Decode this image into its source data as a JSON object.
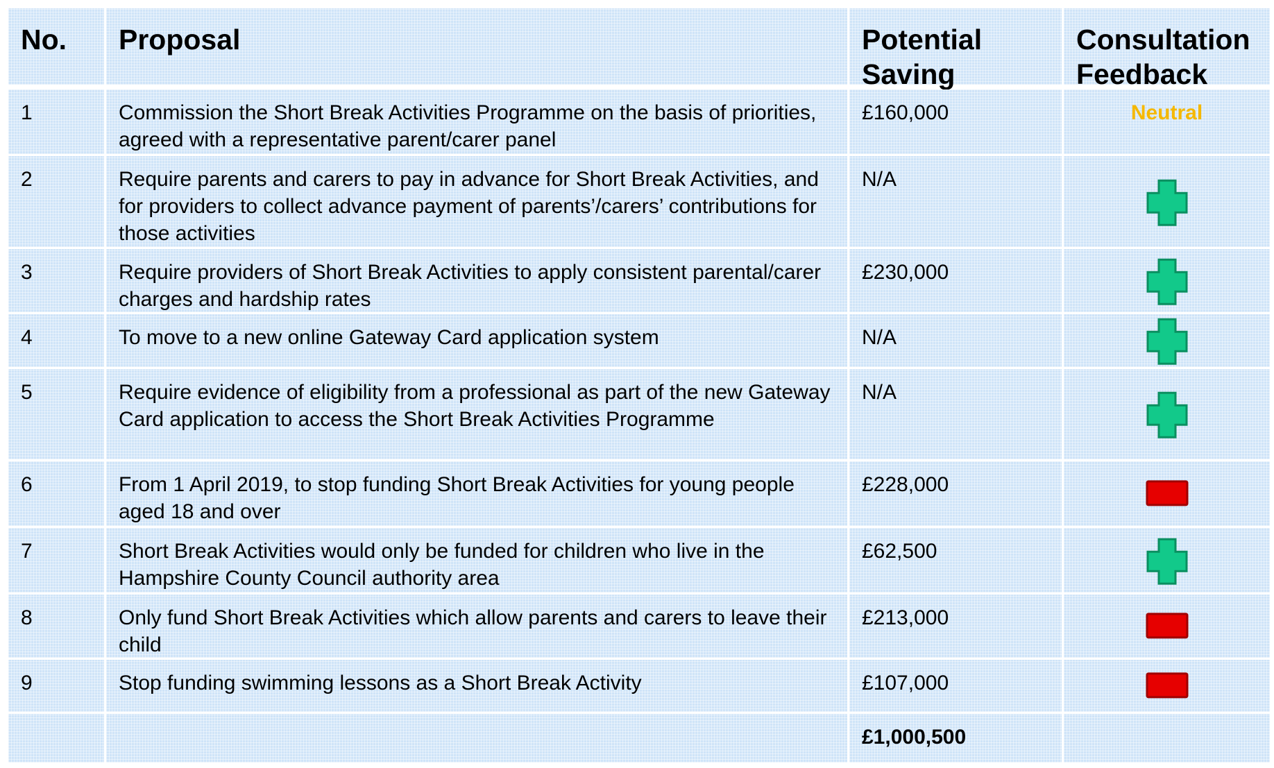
{
  "table": {
    "header": [
      "No.",
      "Proposal",
      "Potential Saving",
      "Consultation Feedback"
    ],
    "rows": [
      {
        "no": "1",
        "proposal": "Commission the Short Break Activities Programme on the basis of priorities, agreed with a representative parent/carer panel",
        "saving": "£160,000",
        "feedback": "Neutral"
      },
      {
        "no": "2",
        "proposal": "Require parents and carers to pay in advance for Short Break Activities, and for providers to collect advance payment of parents’/carers’ contributions for those activities",
        "saving": "N/A"
      },
      {
        "no": "3",
        "proposal": "Require providers of Short Break Activities to apply consistent parental/carer charges and hardship rates",
        "saving": "£230,000"
      },
      {
        "no": "4",
        "proposal": "To move to a new online Gateway Card application system",
        "saving": "N/A"
      },
      {
        "no": "5",
        "proposal": "Require evidence of eligibility from a professional as part of the new Gateway Card application to access the Short Break Activities Programme",
        "saving": "N/A"
      },
      {
        "no": "6",
        "proposal": "From 1 April 2019, to stop funding Short Break Activities for young people aged 18 and over",
        "saving": "£228,000"
      },
      {
        "no": "7",
        "proposal": "Short Break Activities would only be funded for children who live in the Hampshire County Council authority area",
        "saving": "£62,500"
      },
      {
        "no": "8",
        "proposal": "Only fund Short Break Activities which allow parents and carers to leave their child",
        "saving": "£213,000"
      },
      {
        "no": "9",
        "proposal": "Stop funding swimming lessons as a Short Break Activity",
        "saving": "£107,000"
      }
    ],
    "total": "£1,000,500"
  }
}
